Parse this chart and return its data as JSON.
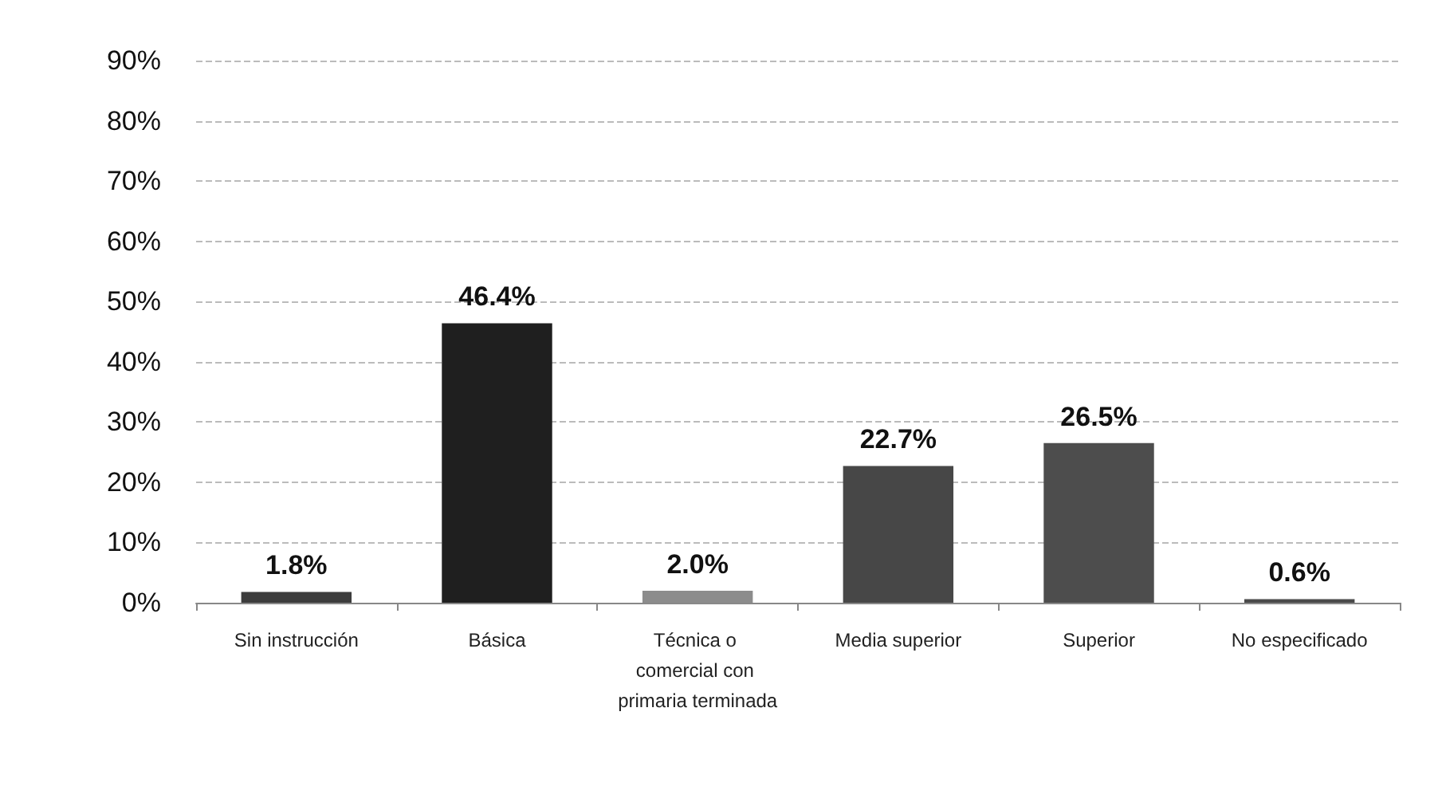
{
  "chart_data": {
    "type": "bar",
    "categories": [
      "Sin instrucción",
      "Básica",
      "Técnica o comercial con primaria terminada",
      "Media superior",
      "Superior",
      "No especificado"
    ],
    "values": [
      1.8,
      46.4,
      2.0,
      22.7,
      26.5,
      0.6
    ],
    "colors": [
      "#3c3c3c",
      "#1f1f1f",
      "#8c8c8c",
      "#474747",
      "#4d4d4d",
      "#4a4a4a"
    ],
    "value_labels": [
      "1.8%",
      "46.4%",
      "2.0%",
      "22.7%",
      "26.5%",
      "0.6%"
    ],
    "ylim": [
      0,
      90
    ],
    "yticks": [
      {
        "value": 0,
        "label": "0%"
      },
      {
        "value": 10,
        "label": "10%"
      },
      {
        "value": 20,
        "label": "20%"
      },
      {
        "value": 30,
        "label": "30%"
      },
      {
        "value": 40,
        "label": "40%"
      },
      {
        "value": 50,
        "label": "50%"
      },
      {
        "value": 60,
        "label": "60%"
      },
      {
        "value": 70,
        "label": "70%"
      },
      {
        "value": 80,
        "label": "80%"
      },
      {
        "value": 90,
        "label": "90%"
      }
    ],
    "grid": "y"
  }
}
